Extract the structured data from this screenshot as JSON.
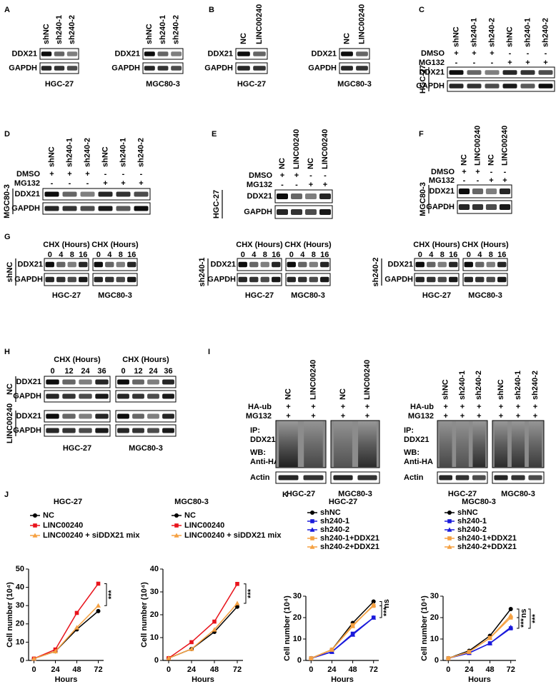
{
  "panels": [
    {
      "letter": "A",
      "blots": [
        {
          "lanes": [
            "shNC",
            "sh240-1",
            "sh240-2"
          ],
          "rows": [
            "DDX21",
            "GAPDH"
          ],
          "caption": "HGC-27"
        },
        {
          "lanes": [
            "shNC",
            "sh240-1",
            "sh240-2"
          ],
          "rows": [
            "DDX21",
            "GAPDH"
          ],
          "caption": "MGC80-3"
        }
      ]
    },
    {
      "letter": "B",
      "blots": [
        {
          "lanes": [
            "NC",
            "LINC00240"
          ],
          "rows": [
            "DDX21",
            "GAPDH"
          ],
          "caption": "HGC-27"
        },
        {
          "lanes": [
            "NC",
            "LINC00240"
          ],
          "rows": [
            "DDX21",
            "GAPDH"
          ],
          "caption": "MGC80-3"
        }
      ]
    },
    {
      "letter": "C",
      "side": "HGC-27",
      "lanes": [
        "shNC",
        "sh240-1",
        "sh240-2",
        "shNC",
        "sh240-1",
        "sh240-2"
      ],
      "treatments": [
        {
          "name": "DMSO",
          "signs": [
            "+",
            "+",
            "+",
            "-",
            "-",
            "-"
          ]
        },
        {
          "name": "MG132",
          "signs": [
            "-",
            "-",
            "-",
            "+",
            "+",
            "+"
          ]
        }
      ],
      "rows": [
        "DDX21",
        "GAPDH"
      ]
    },
    {
      "letter": "D",
      "side": "MGC80-3",
      "lanes": [
        "shNC",
        "sh240-1",
        "sh240-2",
        "shNC",
        "sh240-1",
        "sh240-2"
      ],
      "treatments": [
        {
          "name": "DMSO",
          "signs": [
            "+",
            "+",
            "+",
            "-",
            "-",
            "-"
          ]
        },
        {
          "name": "MG132",
          "signs": [
            "-",
            "-",
            "-",
            "+",
            "+",
            "+"
          ]
        }
      ],
      "rows": [
        "DDX21",
        "GAPDH"
      ]
    },
    {
      "letter": "E",
      "side": "HGC-27",
      "lanes": [
        "NC",
        "LINC00240",
        "NC",
        "LINC00240"
      ],
      "treatments": [
        {
          "name": "DMSO",
          "signs": [
            "+",
            "+",
            "-",
            "-"
          ]
        },
        {
          "name": "MG132",
          "signs": [
            "-",
            "-",
            "+",
            "+"
          ]
        }
      ],
      "rows": [
        "DDX21",
        "GAPDH"
      ]
    },
    {
      "letter": "F",
      "side": "MGC80-3",
      "lanes": [
        "NC",
        "LINC00240",
        "NC",
        "LINC00240"
      ],
      "treatments": [
        {
          "name": "DMSO",
          "signs": [
            "+",
            "+",
            "-",
            "-"
          ]
        },
        {
          "name": "MG132",
          "signs": [
            "-",
            "-",
            "+",
            "+"
          ]
        }
      ],
      "rows": [
        "DDX21",
        "GAPDH"
      ]
    },
    {
      "letter": "G",
      "sets": [
        {
          "side": "shNC",
          "rows": [
            "DDX21",
            "GAPDH"
          ],
          "blots": [
            {
              "header": "CHX (Hours)",
              "timepoints": [
                0,
                4,
                8,
                16
              ],
              "caption": "HGC-27"
            },
            {
              "header": "CHX (Hours)",
              "timepoints": [
                0,
                4,
                8,
                16
              ],
              "caption": "MGC80-3"
            }
          ]
        },
        {
          "side": "sh240-1",
          "rows": [
            "DDX21",
            "GAPDH"
          ],
          "blots": [
            {
              "header": "CHX (Hours)",
              "timepoints": [
                0,
                4,
                8,
                16
              ],
              "caption": "HGC-27"
            },
            {
              "header": "CHX (Hours)",
              "timepoints": [
                0,
                4,
                8,
                16
              ],
              "caption": "MGC80-3"
            }
          ]
        },
        {
          "side": "sh240-2",
          "rows": [
            "DDX21",
            "GAPDH"
          ],
          "blots": [
            {
              "header": "CHX (Hours)",
              "timepoints": [
                0,
                4,
                8,
                16
              ],
              "caption": "HGC-27"
            },
            {
              "header": "CHX (Hours)",
              "timepoints": [
                0,
                4,
                8,
                16
              ],
              "caption": "MGC80-3"
            }
          ]
        }
      ]
    },
    {
      "letter": "H",
      "blots": [
        {
          "header": "CHX (Hours)",
          "timepoints": [
            0,
            12,
            24,
            36
          ],
          "caption": "HGC-27"
        },
        {
          "header": "CHX (Hours)",
          "timepoints": [
            0,
            12,
            24,
            36
          ],
          "caption": "MGC80-3"
        }
      ],
      "groups": [
        {
          "side": "NC",
          "rows": [
            "DDX21",
            "GAPDH"
          ]
        },
        {
          "side": "LINC00240",
          "rows": [
            "DDX21",
            "GAPDH"
          ]
        }
      ]
    },
    {
      "letter": "I",
      "sets": [
        {
          "treatments": [
            {
              "name": "HA-ub",
              "signs": [
                "+",
                "+",
                "+",
                "+"
              ]
            },
            {
              "name": "MG132",
              "signs": [
                "+",
                "+",
                "+",
                "+"
              ]
            }
          ],
          "labels": [
            "IP:",
            "DDX21",
            "WB:",
            "Anti-HA"
          ],
          "loading": "Actin",
          "blots": [
            {
              "lanes": [
                "NC",
                "LINC00240"
              ],
              "caption": "HGC-27"
            },
            {
              "lanes": [
                "NC",
                "LINC00240"
              ],
              "caption": "MGC80-3"
            }
          ]
        },
        {
          "treatments": [
            {
              "name": "HA-ub",
              "signs": [
                "+",
                "+",
                "+",
                "+",
                "+",
                "+"
              ]
            },
            {
              "name": "MG132",
              "signs": [
                "+",
                "+",
                "+",
                "+",
                "+",
                "+"
              ]
            }
          ],
          "labels": [
            "IP:",
            "DDX21",
            "WB:",
            "Anti-HA"
          ],
          "loading": "Actin",
          "blots": [
            {
              "lanes": [
                "shNC",
                "sh240-1",
                "sh240-2"
              ],
              "caption": "HGC-27"
            },
            {
              "lanes": [
                "shNC",
                "sh240-1",
                "sh240-2"
              ],
              "caption": "MGC80-3"
            }
          ]
        }
      ]
    }
  ],
  "chart_data": [
    {
      "type": "line",
      "panel": "J",
      "title": "HGC-27",
      "xlabel": "Hours",
      "ylabel": "Cell number (10⁴)",
      "x": [
        0,
        24,
        48,
        72
      ],
      "xlim": [
        -6,
        78
      ],
      "xticks": [
        0,
        24,
        48,
        72
      ],
      "ylim": [
        0,
        50
      ],
      "yticks": [
        0,
        10,
        20,
        30,
        40,
        50
      ],
      "series": [
        {
          "name": "NC",
          "color": "#000000",
          "marker": "circle",
          "values": [
            1,
            5,
            17,
            27
          ]
        },
        {
          "name": "LINC00240",
          "color": "#e8141c",
          "marker": "square",
          "values": [
            1,
            6,
            26,
            42
          ]
        },
        {
          "name": "LINC00240 + siDDX21 mix",
          "color": "#f5a142",
          "marker": "triangle",
          "values": [
            1,
            5,
            18,
            30
          ]
        }
      ],
      "annotations": [
        "***"
      ]
    },
    {
      "type": "line",
      "title": "MGC80-3",
      "xlabel": "Hours",
      "ylabel": "Cell number (10⁴)",
      "x": [
        0,
        24,
        48,
        72
      ],
      "xlim": [
        -6,
        78
      ],
      "xticks": [
        0,
        24,
        48,
        72
      ],
      "ylim": [
        0,
        40
      ],
      "yticks": [
        0,
        10,
        20,
        30,
        40
      ],
      "series": [
        {
          "name": "NC",
          "color": "#000000",
          "marker": "circle",
          "values": [
            1,
            5,
            12.5,
            23.5
          ]
        },
        {
          "name": "LINC00240",
          "color": "#e8141c",
          "marker": "square",
          "values": [
            1,
            8,
            17,
            33.5
          ]
        },
        {
          "name": "LINC00240 + siDDX21 mix",
          "color": "#f5a142",
          "marker": "triangle",
          "values": [
            1,
            5,
            13.5,
            25
          ]
        }
      ],
      "annotations": [
        "***"
      ]
    },
    {
      "type": "line",
      "panel": "K",
      "title": "HGC-27",
      "xlabel": "Hours",
      "ylabel": "Cell number (10⁴)",
      "x": [
        0,
        24,
        48,
        72
      ],
      "xlim": [
        -6,
        78
      ],
      "xticks": [
        0,
        24,
        48,
        72
      ],
      "ylim": [
        0,
        30
      ],
      "yticks": [
        0,
        10,
        20,
        30
      ],
      "series": [
        {
          "name": "shNC",
          "color": "#000000",
          "marker": "circle",
          "values": [
            1,
            5,
            17.5,
            27.5
          ]
        },
        {
          "name": "sh240-1",
          "color": "#1a1adb",
          "marker": "square",
          "values": [
            1,
            4,
            12.5,
            20
          ]
        },
        {
          "name": "sh240-2",
          "color": "#1a1adb",
          "marker": "triangle",
          "values": [
            1,
            4,
            12,
            20
          ]
        },
        {
          "name": "sh240-1+DDX21",
          "color": "#f5a142",
          "marker": "square",
          "values": [
            1,
            5,
            16.5,
            25.5
          ]
        },
        {
          "name": "sh240-2+DDX21",
          "color": "#f5a142",
          "marker": "triangle",
          "values": [
            1,
            5,
            16,
            26
          ]
        }
      ],
      "annotations": [
        "ns",
        "***"
      ]
    },
    {
      "type": "line",
      "title": "MGC80-3",
      "xlabel": "Hours",
      "ylabel": "Cell number (10⁴)",
      "x": [
        0,
        24,
        48,
        72
      ],
      "xlim": [
        -6,
        78
      ],
      "xticks": [
        0,
        24,
        48,
        72
      ],
      "ylim": [
        0,
        30
      ],
      "yticks": [
        0,
        10,
        20,
        30
      ],
      "series": [
        {
          "name": "shNC",
          "color": "#000000",
          "marker": "circle",
          "values": [
            1,
            4.5,
            11.5,
            24
          ]
        },
        {
          "name": "sh240-1",
          "color": "#1a1adb",
          "marker": "square",
          "values": [
            1,
            3.5,
            8,
            15
          ]
        },
        {
          "name": "sh240-2",
          "color": "#1a1adb",
          "marker": "triangle",
          "values": [
            1,
            3.5,
            8,
            15.5
          ]
        },
        {
          "name": "sh240-1+DDX21",
          "color": "#f5a142",
          "marker": "square",
          "values": [
            1,
            4,
            10.5,
            20
          ]
        },
        {
          "name": "sh240-2+DDX21",
          "color": "#f5a142",
          "marker": "triangle",
          "values": [
            1,
            4,
            10.5,
            21
          ]
        }
      ],
      "annotations": [
        "ns",
        "***",
        "***"
      ]
    }
  ]
}
